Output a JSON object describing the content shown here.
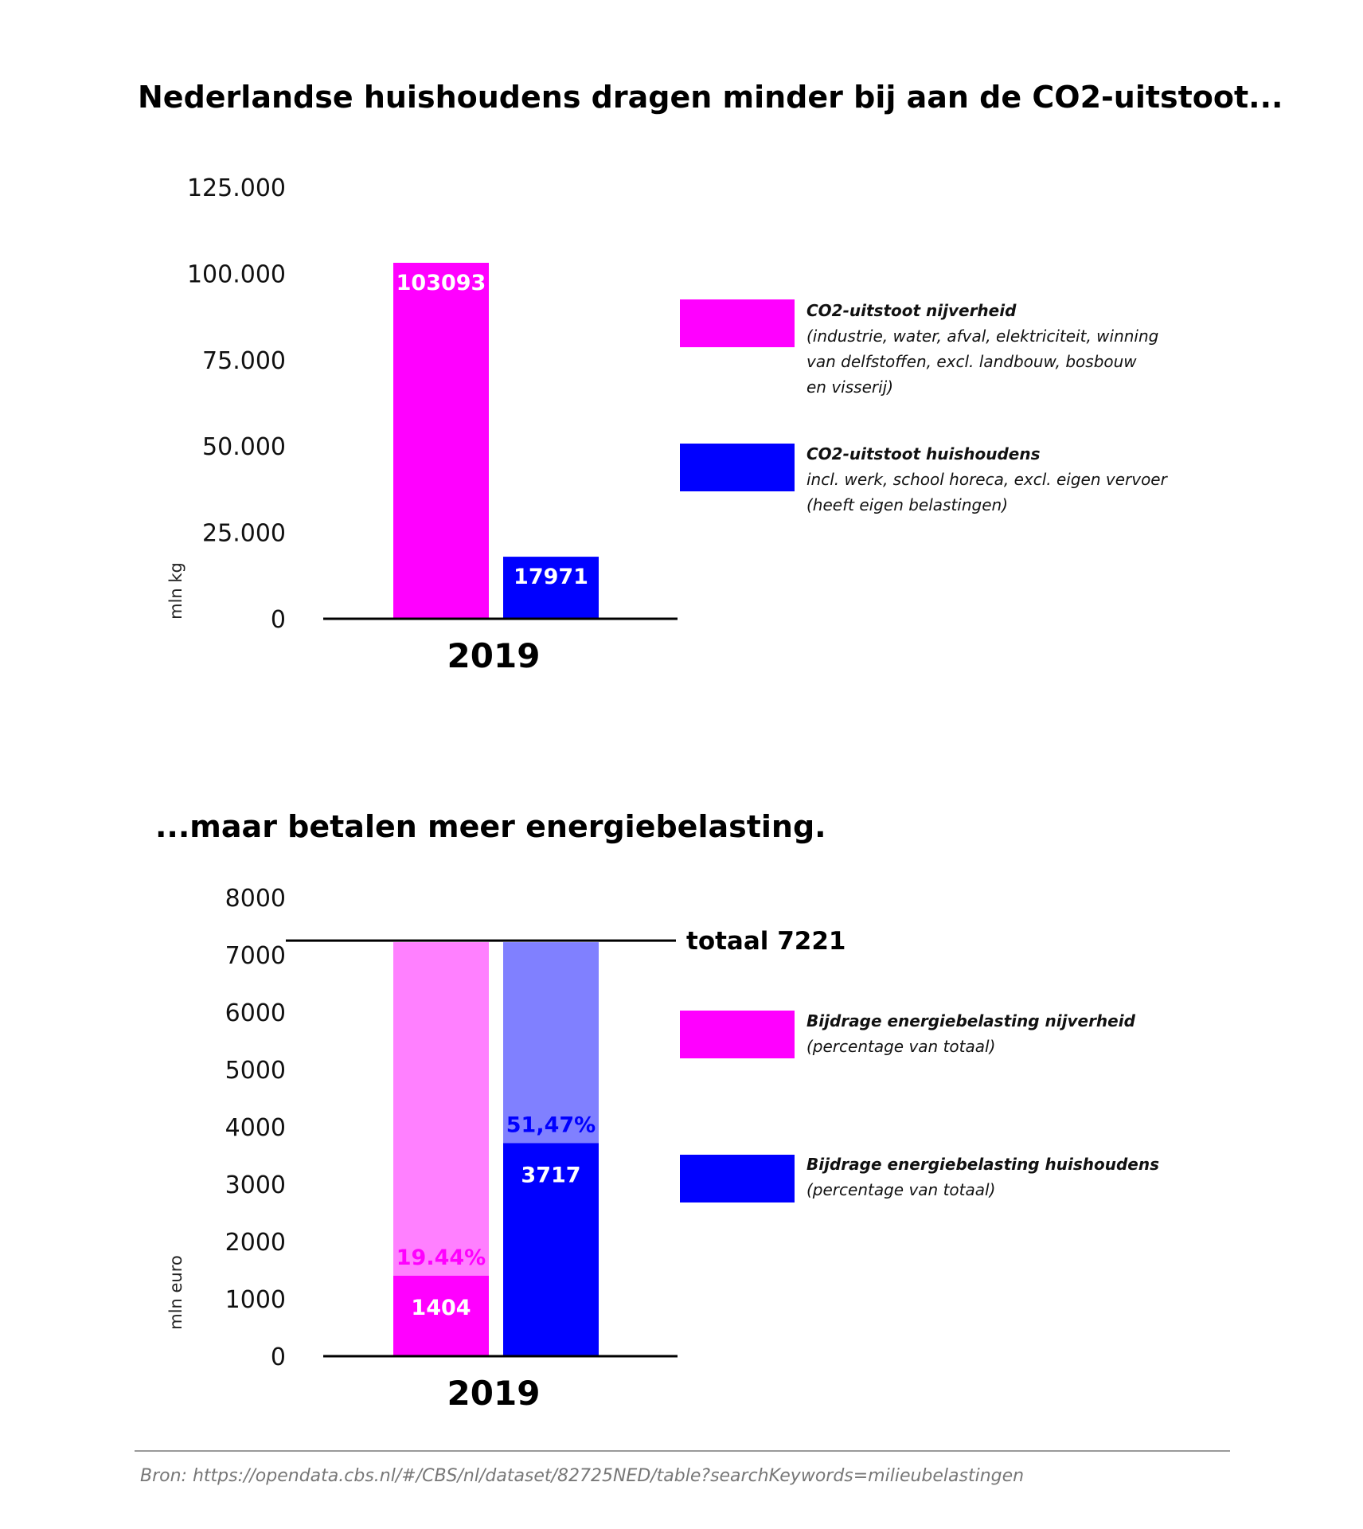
{
  "chart_data": [
    {
      "type": "bar",
      "title": "Nederlandse huishoudens dragen minder bij aan de CO2-uitstoot...",
      "categories": [
        "2019"
      ],
      "ylabel": "mln kg",
      "ylim": [
        0,
        125000
      ],
      "yticks": [
        "0",
        "25.000",
        "50.000",
        "75.000",
        "100.000",
        "125.000"
      ],
      "ytick_values": [
        0,
        25000,
        50000,
        75000,
        100000,
        125000
      ],
      "series": [
        {
          "name": "CO2-uitstoot nijverheid",
          "values": [
            103093
          ],
          "label": "103093",
          "color": "#ff00ff",
          "legend_lines": [
            "(industrie, water, afval, elektriciteit, winning",
            "van delfstoffen, excl. landbouw, bosbouw",
            "en visserij)"
          ]
        },
        {
          "name": "CO2-uitstoot huishoudens",
          "values": [
            17971
          ],
          "label": "17971",
          "color": "#0000ff",
          "legend_lines": [
            "incl. werk, school horeca, excl. eigen vervoer",
            "(heeft eigen belastingen)"
          ]
        }
      ],
      "legend_placement": "right"
    },
    {
      "type": "bar",
      "title": "...maar betalen meer energiebelasting.",
      "categories": [
        "2019"
      ],
      "ylabel": "mln euro",
      "ylim": [
        0,
        8000
      ],
      "yticks": [
        "0",
        "1000",
        "2000",
        "3000",
        "4000",
        "5000",
        "6000",
        "7000",
        "8000"
      ],
      "ytick_values": [
        0,
        1000,
        2000,
        3000,
        4000,
        5000,
        6000,
        7000,
        8000
      ],
      "total": 7221,
      "total_label": "totaal 7221",
      "series": [
        {
          "name": "Bijdrage energiebelasting nijverheid",
          "values": [
            1404
          ],
          "label": "1404",
          "pct_label": "19.44%",
          "color": "#ff00ff",
          "light_color": "#ff80ff",
          "legend_lines": [
            "(percentage van totaal)"
          ]
        },
        {
          "name": "Bijdrage energiebelasting huishoudens",
          "values": [
            3717
          ],
          "label": "3717",
          "pct_label": "51,47%",
          "color": "#0000ff",
          "light_color": "#8080ff",
          "legend_lines": [
            "(percentage van totaal)"
          ]
        }
      ],
      "legend_placement": "right"
    }
  ],
  "source": "Bron: https://opendata.cbs.nl/#/CBS/nl/dataset/82725NED/table?searchKeywords=milieubelastingen"
}
